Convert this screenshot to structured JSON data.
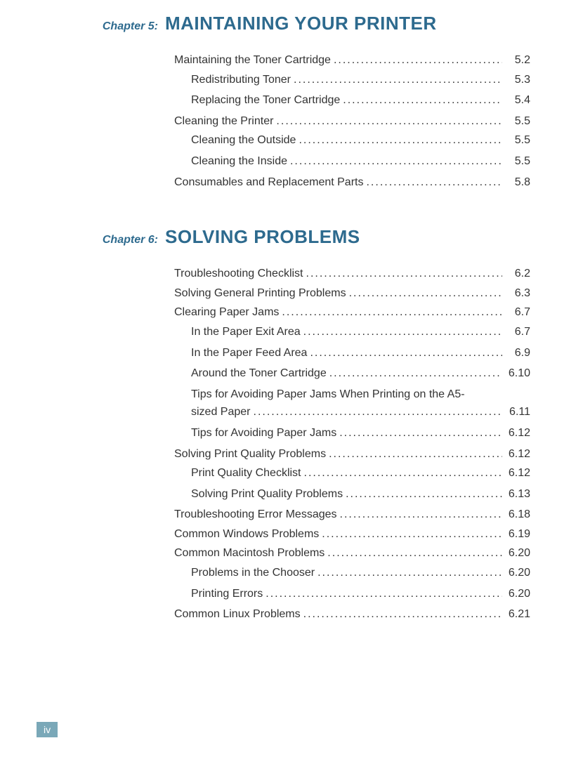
{
  "pageNumber": "iv",
  "colors": {
    "heading": "#2d6a8e",
    "text": "#333333",
    "badgeBg": "#7aa8b8",
    "badgeText": "#ffffff",
    "pageBg": "#ffffff"
  },
  "chapters": [
    {
      "label": "Chapter 5:",
      "title": "MAINTAINING YOUR PRINTER",
      "entries": [
        {
          "text": "Maintaining the Toner Cartridge",
          "page": "5.2",
          "level": 0
        },
        {
          "text": "Redistributing Toner",
          "page": "5.3",
          "level": 1
        },
        {
          "text": "Replacing the Toner Cartridge",
          "page": "5.4",
          "level": 1
        },
        {
          "text": "Cleaning the Printer",
          "page": "5.5",
          "level": 0
        },
        {
          "text": "Cleaning the Outside",
          "page": "5.5",
          "level": 1
        },
        {
          "text": "Cleaning the Inside",
          "page": "5.5",
          "level": 1
        },
        {
          "text": "Consumables and Replacement Parts",
          "page": "5.8",
          "level": 0
        }
      ]
    },
    {
      "label": "Chapter 6:",
      "title": "SOLVING PROBLEMS",
      "entries": [
        {
          "text": "Troubleshooting Checklist",
          "page": "6.2",
          "level": 0
        },
        {
          "text": "Solving General Printing Problems",
          "page": "6.3",
          "level": 0
        },
        {
          "text": "Clearing Paper Jams",
          "page": "6.7",
          "level": 0
        },
        {
          "text": "In the Paper Exit Area",
          "page": "6.7",
          "level": 1
        },
        {
          "text": "In the Paper Feed Area",
          "page": "6.9",
          "level": 1
        },
        {
          "text": "Around the Toner Cartridge",
          "page": "6.10",
          "level": 1
        },
        {
          "text": "Tips for Avoiding Paper Jams When Printing on the A5-sized Paper",
          "page": "6.11",
          "level": 1,
          "wrap": true,
          "line1": "Tips for Avoiding Paper Jams When Printing on the A5-",
          "line2": "sized Paper"
        },
        {
          "text": "Tips for Avoiding Paper Jams",
          "page": "6.12",
          "level": 1
        },
        {
          "text": "Solving Print Quality Problems",
          "page": "6.12",
          "level": 0
        },
        {
          "text": "Print Quality Checklist",
          "page": "6.12",
          "level": 1
        },
        {
          "text": "Solving Print Quality Problems",
          "page": "6.13",
          "level": 1
        },
        {
          "text": "Troubleshooting Error Messages",
          "page": "6.18",
          "level": 0
        },
        {
          "text": "Common Windows Problems",
          "page": "6.19",
          "level": 0
        },
        {
          "text": "Common Macintosh Problems",
          "page": "6.20",
          "level": 0
        },
        {
          "text": "Problems in the Chooser",
          "page": "6.20",
          "level": 1
        },
        {
          "text": "Printing Errors",
          "page": "6.20",
          "level": 1
        },
        {
          "text": "Common Linux Problems",
          "page": "6.21",
          "level": 0
        }
      ]
    }
  ]
}
